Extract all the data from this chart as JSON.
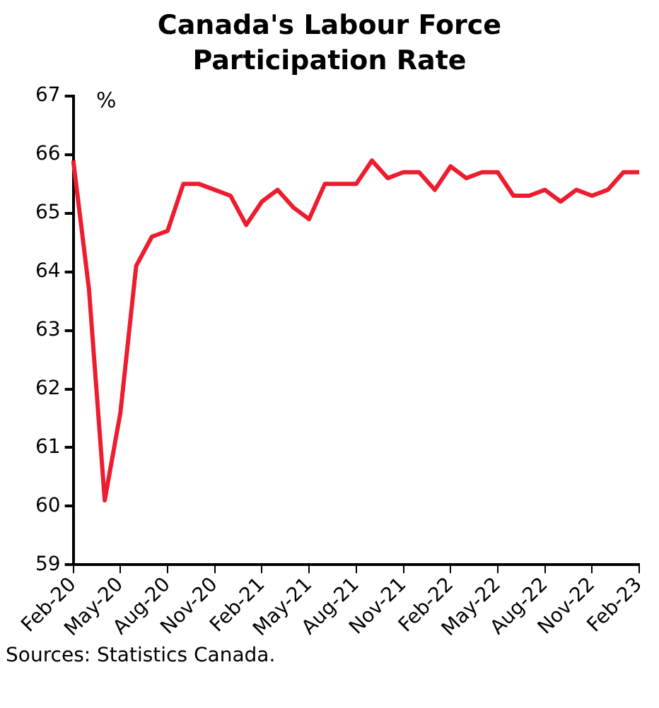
{
  "chart_data": {
    "type": "line",
    "title": "Canada's Labour Force Participation Rate",
    "ylabel": "%",
    "categories": [
      "Feb-20",
      null,
      null,
      "May-20",
      null,
      null,
      "Aug-20",
      null,
      null,
      "Nov-20",
      null,
      null,
      "Feb-21",
      null,
      null,
      "May-21",
      null,
      null,
      "Aug-21",
      null,
      null,
      "Nov-21",
      null,
      null,
      "Feb-22",
      null,
      null,
      "May-22",
      null,
      null,
      "Aug-22",
      null,
      null,
      "Nov-22",
      null,
      null,
      "Feb-23"
    ],
    "series": [
      {
        "color": "#ee1c2e",
        "values": [
          65.9,
          63.7,
          60.1,
          61.6,
          64.1,
          64.6,
          64.7,
          65.5,
          65.5,
          65.4,
          65.3,
          64.8,
          65.2,
          65.4,
          65.1,
          64.9,
          65.5,
          65.5,
          65.5,
          65.9,
          65.6,
          65.7,
          65.7,
          65.4,
          65.8,
          65.6,
          65.7,
          65.7,
          65.3,
          65.3,
          65.4,
          65.2,
          65.4,
          65.3,
          65.4,
          65.7,
          65.7
        ]
      }
    ],
    "ylim": [
      59,
      67
    ],
    "yticks": [
      59,
      60,
      61,
      62,
      63,
      64,
      65,
      66,
      67
    ],
    "grid": false,
    "legend": false,
    "marker": "none",
    "line_style": "solid",
    "annotations": [
      "Sources: Statistics Canada."
    ]
  }
}
